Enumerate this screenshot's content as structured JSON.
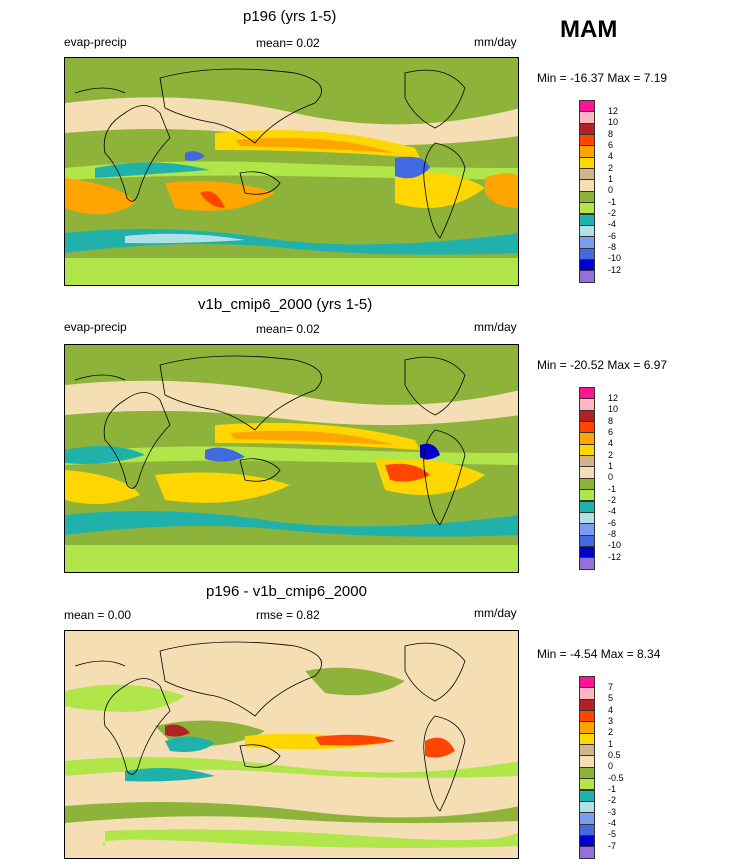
{
  "season": "MAM",
  "panels": [
    {
      "title": "p196 (yrs 1-5)",
      "left_label": "evap-precip",
      "center_label": "mean=  0.02",
      "right_label": "mm/day",
      "minmax": "Min = -16.37 Max =   7.19"
    },
    {
      "title": "v1b_cmip6_2000 (yrs 1-5)",
      "left_label": "evap-precip",
      "center_label": "mean=  0.02",
      "right_label": "mm/day",
      "minmax": "Min = -20.52 Max =   6.97"
    },
    {
      "title": "p196 - v1b_cmip6_2000",
      "left_label": "mean =   0.00",
      "center_label": "rmse =   0.82",
      "right_label": "mm/day",
      "minmax": "Min =  -4.54 Max =   8.34"
    }
  ],
  "chart_data": [
    {
      "type": "heatmap",
      "title": "p196 (yrs 1-5)",
      "variable": "evap-precip",
      "units": "mm/day",
      "mean": 0.02,
      "min": -16.37,
      "max": 7.19,
      "levels": [
        "12",
        "10",
        "8",
        "6",
        "4",
        "2",
        "1",
        "0",
        "-1",
        "-2",
        "-4",
        "-6",
        "-8",
        "-10",
        "-12"
      ],
      "colors": [
        "#ff1493",
        "#ffb6c1",
        "#b22222",
        "#ff4500",
        "#ffa500",
        "#ffd700",
        "#d2b48c",
        "#f5deb3",
        "#8db33a",
        "#b0e64a",
        "#20b2aa",
        "#b0e0e6",
        "#7b9cf0",
        "#4169e1",
        "#0000cd",
        "#9370db"
      ]
    },
    {
      "type": "heatmap",
      "title": "v1b_cmip6_2000 (yrs 1-5)",
      "variable": "evap-precip",
      "units": "mm/day",
      "mean": 0.02,
      "min": -20.52,
      "max": 6.97,
      "levels": [
        "12",
        "10",
        "8",
        "6",
        "4",
        "2",
        "1",
        "0",
        "-1",
        "-2",
        "-4",
        "-6",
        "-8",
        "-10",
        "-12"
      ],
      "colors": [
        "#ff1493",
        "#ffb6c1",
        "#b22222",
        "#ff4500",
        "#ffa500",
        "#ffd700",
        "#d2b48c",
        "#f5deb3",
        "#8db33a",
        "#b0e64a",
        "#20b2aa",
        "#b0e0e6",
        "#7b9cf0",
        "#4169e1",
        "#0000cd",
        "#9370db"
      ]
    },
    {
      "type": "heatmap",
      "title": "p196 - v1b_cmip6_2000",
      "units": "mm/day",
      "mean": 0.0,
      "rmse": 0.82,
      "min": -4.54,
      "max": 8.34,
      "levels": [
        "7",
        "5",
        "4",
        "3",
        "2",
        "1",
        "0.5",
        "0",
        "-0.5",
        "-1",
        "-2",
        "-3",
        "-4",
        "-5",
        "-7"
      ],
      "colors": [
        "#ff1493",
        "#ffb6c1",
        "#b22222",
        "#ff4500",
        "#ffa500",
        "#ffd700",
        "#d2b48c",
        "#f5deb3",
        "#8db33a",
        "#b0e64a",
        "#20b2aa",
        "#b0e0e6",
        "#7b9cf0",
        "#4169e1",
        "#0000cd",
        "#9370db"
      ]
    }
  ]
}
